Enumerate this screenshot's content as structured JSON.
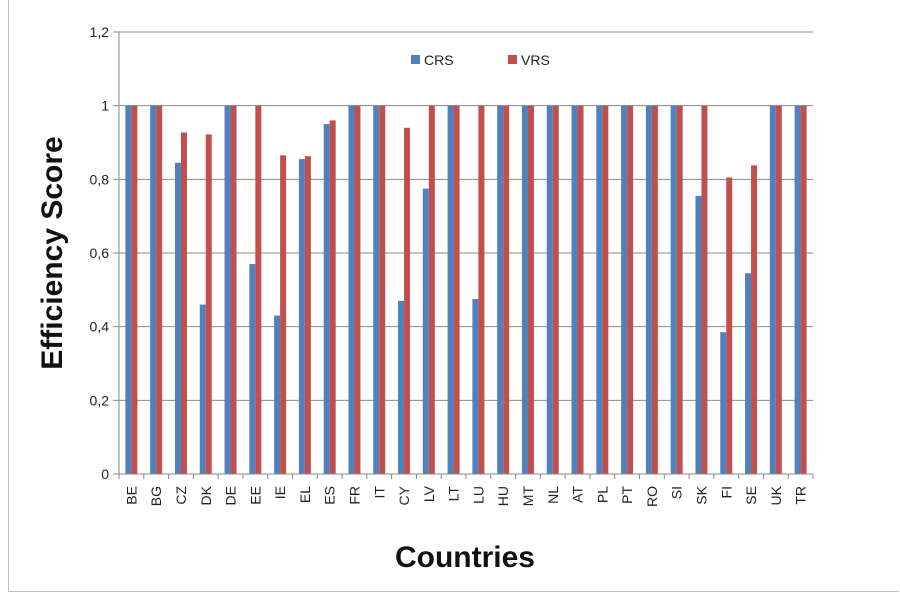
{
  "chart_data": {
    "type": "bar",
    "categories": [
      "BE",
      "BG",
      "CZ",
      "DK",
      "DE",
      "EE",
      "IE",
      "EL",
      "ES",
      "FR",
      "IT",
      "CY",
      "LV",
      "LT",
      "LU",
      "HU",
      "MT",
      "NL",
      "AT",
      "PL",
      "PT",
      "RO",
      "SI",
      "SK",
      "FI",
      "SE",
      "UK",
      "TR"
    ],
    "series": [
      {
        "name": "CRS",
        "color": "#4f81bd",
        "values": [
          1,
          1,
          0.845,
          0.46,
          1,
          0.57,
          0.43,
          0.855,
          0.95,
          1,
          1,
          0.47,
          0.775,
          1,
          0.475,
          1,
          1,
          1,
          1,
          1,
          1,
          1,
          1,
          0.755,
          0.385,
          0.545,
          1,
          1
        ]
      },
      {
        "name": "VRS",
        "color": "#c0504d",
        "values": [
          1,
          1,
          0.927,
          0.922,
          1,
          1,
          0.865,
          0.863,
          0.96,
          1,
          1,
          0.94,
          1,
          1,
          1,
          1,
          1,
          1,
          1,
          1,
          1,
          1,
          1,
          1,
          0.805,
          0.838,
          1,
          1
        ]
      }
    ],
    "xlabel": "Countries",
    "ylabel": "Efficiency Score",
    "ylim": [
      0,
      1.2
    ],
    "yticks": [
      "0",
      "0,2",
      "0,4",
      "0,6",
      "0,8",
      "1",
      "1,2"
    ],
    "ytick_values": [
      0,
      0.2,
      0.4,
      0.6,
      0.8,
      1,
      1.2
    ],
    "grid": true,
    "legend_position": "top-center"
  }
}
